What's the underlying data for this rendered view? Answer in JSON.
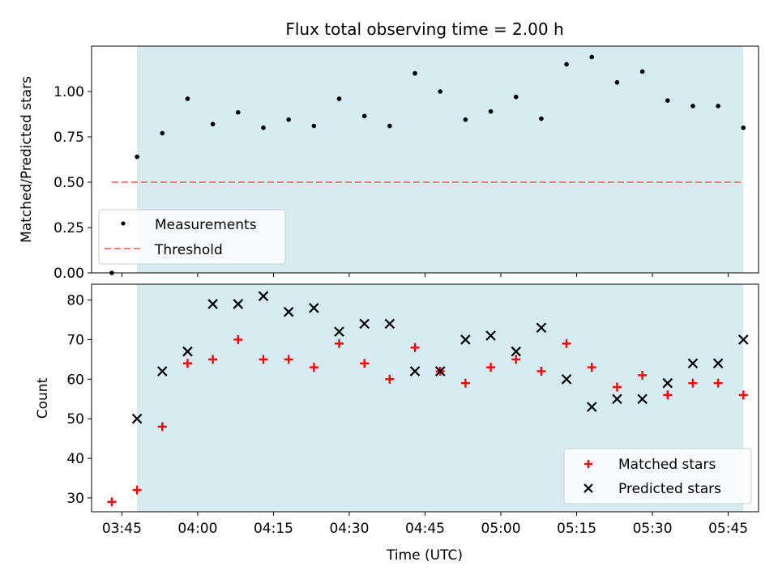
{
  "figure": {
    "title": "Flux total observing time = 2.00 h",
    "xlabel": "Time (UTC)"
  },
  "x_tick_labels": [
    "03:45",
    "04:00",
    "04:15",
    "04:30",
    "04:45",
    "05:00",
    "05:15",
    "05:30",
    "05:45"
  ],
  "colors": {
    "shade": "#add8e6",
    "measurement": "#000000",
    "threshold": "#f08080",
    "matched": "#ff0000",
    "predicted": "#000000"
  },
  "chart_data": [
    {
      "type": "scatter",
      "title": "Flux total observing time = 2.00 h",
      "xlabel": "",
      "ylabel": "Matched/Predicted stars",
      "ylim": [
        0,
        1.25
      ],
      "yticks": [
        "0.00",
        "0.25",
        "0.50",
        "0.75",
        "1.00"
      ],
      "xlim": [
        "03:39",
        "05:51"
      ],
      "x_tick_labels": [
        "03:45",
        "04:00",
        "04:15",
        "04:30",
        "04:45",
        "05:00",
        "05:15",
        "05:30",
        "05:45"
      ],
      "shaded_region": {
        "start": "03:48",
        "end": "05:48"
      },
      "legend": {
        "position": "lower-left",
        "entries": [
          "Measurements",
          "Threshold"
        ]
      },
      "series": [
        {
          "name": "Measurements",
          "marker": "dot",
          "x": [
            "03:43",
            "03:48",
            "03:53",
            "03:58",
            "04:03",
            "04:08",
            "04:13",
            "04:18",
            "04:23",
            "04:28",
            "04:33",
            "04:38",
            "04:43",
            "04:48",
            "04:53",
            "04:58",
            "05:03",
            "05:08",
            "05:13",
            "05:18",
            "05:23",
            "05:28",
            "05:33",
            "05:38",
            "05:43",
            "05:48"
          ],
          "y": [
            0.0,
            0.64,
            0.77,
            0.96,
            0.82,
            0.885,
            0.8,
            0.845,
            0.81,
            0.96,
            0.865,
            0.81,
            1.1,
            1.0,
            0.845,
            0.89,
            0.97,
            0.85,
            1.15,
            1.19,
            1.05,
            1.11,
            0.95,
            0.92,
            0.92,
            0.8
          ]
        },
        {
          "name": "Threshold",
          "style": "dashed-line",
          "x": [
            "03:43",
            "05:48"
          ],
          "y": [
            0.5,
            0.5
          ]
        }
      ]
    },
    {
      "type": "scatter",
      "xlabel": "Time (UTC)",
      "ylabel": "Count",
      "ylim": [
        26.5,
        84
      ],
      "yticks": [
        "30",
        "40",
        "50",
        "60",
        "70",
        "80"
      ],
      "xlim": [
        "03:39",
        "05:51"
      ],
      "x_tick_labels": [
        "03:45",
        "04:00",
        "04:15",
        "04:30",
        "04:45",
        "05:00",
        "05:15",
        "05:30",
        "05:45"
      ],
      "shaded_region": {
        "start": "03:48",
        "end": "05:48"
      },
      "legend": {
        "position": "lower-right",
        "entries": [
          "Matched stars",
          "Predicted stars"
        ]
      },
      "series": [
        {
          "name": "Matched stars",
          "marker": "plus",
          "x": [
            "03:43",
            "03:48",
            "03:53",
            "03:58",
            "04:03",
            "04:08",
            "04:13",
            "04:18",
            "04:23",
            "04:28",
            "04:33",
            "04:38",
            "04:43",
            "04:48",
            "04:53",
            "04:58",
            "05:03",
            "05:08",
            "05:13",
            "05:18",
            "05:23",
            "05:28",
            "05:33",
            "05:38",
            "05:43",
            "05:48"
          ],
          "y": [
            29,
            32,
            48,
            64,
            65,
            70,
            65,
            65,
            63,
            69,
            64,
            60,
            68,
            62,
            59,
            63,
            65,
            62,
            69,
            63,
            58,
            61,
            56,
            59,
            59,
            56
          ]
        },
        {
          "name": "Predicted stars",
          "marker": "x",
          "x": [
            "03:48",
            "03:53",
            "03:58",
            "04:03",
            "04:08",
            "04:13",
            "04:18",
            "04:23",
            "04:28",
            "04:33",
            "04:38",
            "04:43",
            "04:48",
            "04:53",
            "04:58",
            "05:03",
            "05:08",
            "05:13",
            "05:18",
            "05:23",
            "05:28",
            "05:33",
            "05:38",
            "05:43",
            "05:48"
          ],
          "y": [
            50,
            62,
            67,
            79,
            79,
            81,
            77,
            78,
            72,
            74,
            74,
            62,
            62,
            70,
            71,
            67,
            73,
            60,
            53,
            55,
            55,
            59,
            64,
            64,
            70
          ]
        }
      ]
    }
  ]
}
